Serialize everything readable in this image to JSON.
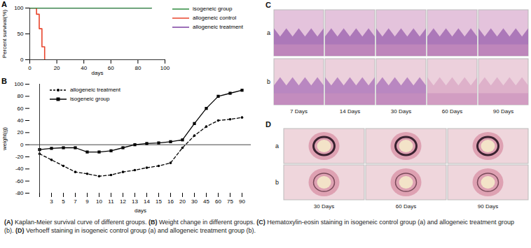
{
  "chart_data": [
    {
      "panel_label": "A",
      "type": "line",
      "x_label": "days",
      "y_label": "Percent survival(%)",
      "xlim": [
        0,
        100
      ],
      "xticks": [
        0,
        20,
        40,
        60,
        80,
        100
      ],
      "ylim": [
        0,
        100
      ],
      "yticks": [
        0,
        50,
        100
      ],
      "legend": "right",
      "series": [
        {
          "name": "isogeneic group",
          "color": "#2e8b3e",
          "x": [
            0,
            90
          ],
          "values": [
            100,
            100
          ]
        },
        {
          "name": "allogeneic control",
          "color": "#e8452c",
          "x": [
            0,
            5,
            7,
            9,
            11
          ],
          "values": [
            100,
            88,
            60,
            25,
            0
          ]
        },
        {
          "name": "allogeneic treatment",
          "color": "#7b3fa0",
          "x": [
            0,
            90
          ],
          "values": [
            100,
            100
          ]
        }
      ]
    },
    {
      "panel_label": "B",
      "type": "line",
      "x_label": "days",
      "y_label": "weight(g)",
      "categories": [
        null,
        3,
        5,
        7,
        9,
        10,
        11,
        12,
        13,
        14,
        15,
        16,
        20,
        30,
        45,
        60,
        75,
        90
      ],
      "ylim": [
        -80,
        100
      ],
      "yticks": [
        -80,
        -60,
        -40,
        -20,
        0,
        20,
        40,
        60,
        80,
        100
      ],
      "legend": "top-left",
      "series": [
        {
          "name": "allogeneic treatment",
          "color": "#000000",
          "marker": "circle",
          "line_style": "dashed",
          "values": [
            -15,
            -25,
            -35,
            -45,
            -48,
            -52,
            -50,
            -45,
            -42,
            -38,
            -35,
            -30,
            -5,
            15,
            30,
            40,
            42,
            45
          ]
        },
        {
          "name": "isogeneic group",
          "color": "#000000",
          "marker": "square",
          "line_style": "solid",
          "values": [
            -8,
            -6,
            -5,
            -5,
            -12,
            -12,
            -10,
            -5,
            0,
            2,
            3,
            5,
            8,
            35,
            60,
            80,
            85,
            90
          ]
        }
      ]
    }
  ],
  "image_panels": [
    {
      "panel_label": "C",
      "rows": [
        "a",
        "b"
      ],
      "columns": [
        "7 Days",
        "14 Days",
        "30 Days",
        "60 Days",
        "90 Days"
      ]
    },
    {
      "panel_label": "D",
      "rows": [
        "a",
        "b"
      ],
      "columns": [
        "30 Days",
        "60 Days",
        "90 Days"
      ]
    }
  ],
  "caption": [
    {
      "label": "(A)",
      "text": "Kaplan-Meier survival curve of different groups."
    },
    {
      "label": "(B)",
      "text": "Weight change in different groups."
    },
    {
      "label": "(C)",
      "text": "Hematoxylin-eosin staining in isogeneic control group (a) and allogeneic treatment group (b)."
    },
    {
      "label": "(D)",
      "text": "Verhoeff staining in isogeneic control group (a) and allogeneic treatment group (b)."
    }
  ]
}
